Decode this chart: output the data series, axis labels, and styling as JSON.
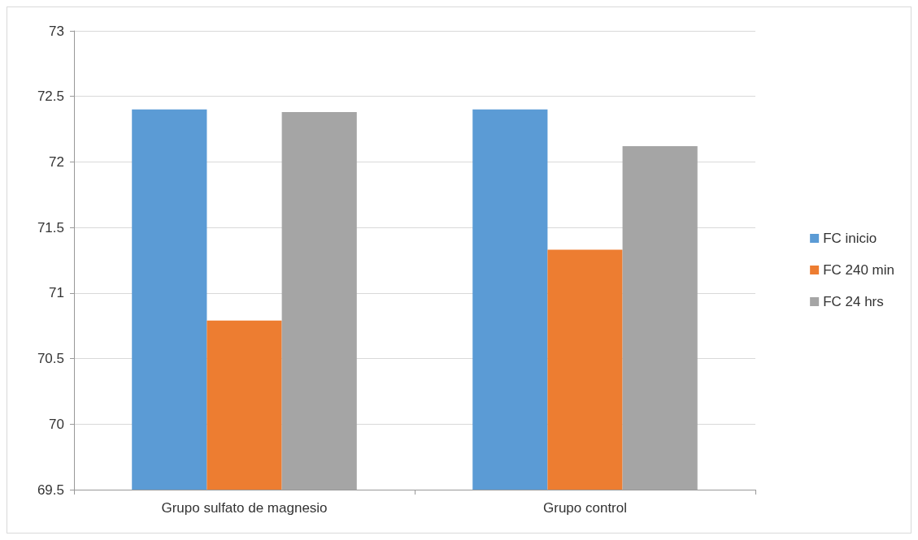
{
  "chart_data": {
    "type": "bar",
    "categories": [
      "Grupo sulfato de magnesio",
      "Grupo control"
    ],
    "series": [
      {
        "name": "FC inicio",
        "color": "#5b9bd5",
        "values": [
          72.4,
          72.4
        ]
      },
      {
        "name": "FC 240 min",
        "color": "#ed7d31",
        "values": [
          70.79,
          71.33
        ]
      },
      {
        "name": "FC 24 hrs",
        "color": "#a5a5a5",
        "values": [
          72.38,
          72.12
        ]
      }
    ],
    "ylim": [
      69.5,
      73
    ],
    "yticks": [
      69.5,
      70,
      70.5,
      71,
      71.5,
      72,
      72.5,
      73
    ],
    "grid": "y",
    "legend": "right"
  }
}
